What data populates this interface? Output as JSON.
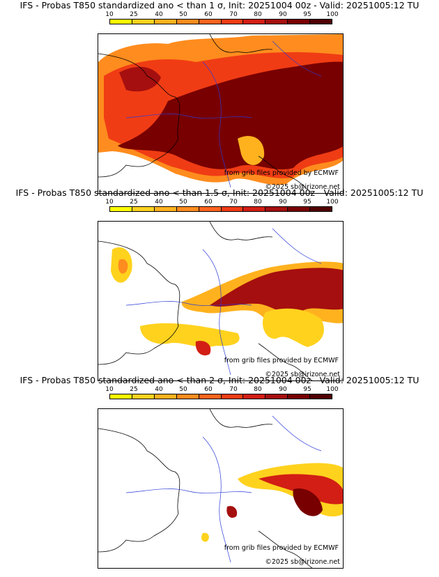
{
  "palette": [
    "#ffff00",
    "#ffd21e",
    "#ffb21e",
    "#ff8c1e",
    "#ff641e",
    "#f03c14",
    "#d21e14",
    "#a50f0f",
    "#780000",
    "#500000"
  ],
  "legend_ticks": [
    "10",
    "25",
    "40",
    "50",
    "60",
    "70",
    "80",
    "90",
    "95",
    "100"
  ],
  "panels": [
    {
      "title": "IFS - Probas T850  standardized ano < than 1 σ, Init: 20251004 00z - Valid: 20251005:12 TU",
      "provider": "from grib files provided by ECMWF",
      "copyright": "©2025 sb@irizone.net"
    },
    {
      "title": "IFS - Probas T850  standardized ano < than 1.5 σ, Init: 20251004 00z - Valid: 20251005:12 TU",
      "provider": "from grib files provided by ECMWF",
      "copyright": "©2025 sb@irizone.net"
    },
    {
      "title": "IFS - Probas T850  standardized ano < than 2 σ, Init: 20251004 00z - Valid: 20251005:12 TU",
      "provider": "from grib files provided by ECMWF",
      "copyright": "©2025 sb@irizone.net"
    }
  ]
}
